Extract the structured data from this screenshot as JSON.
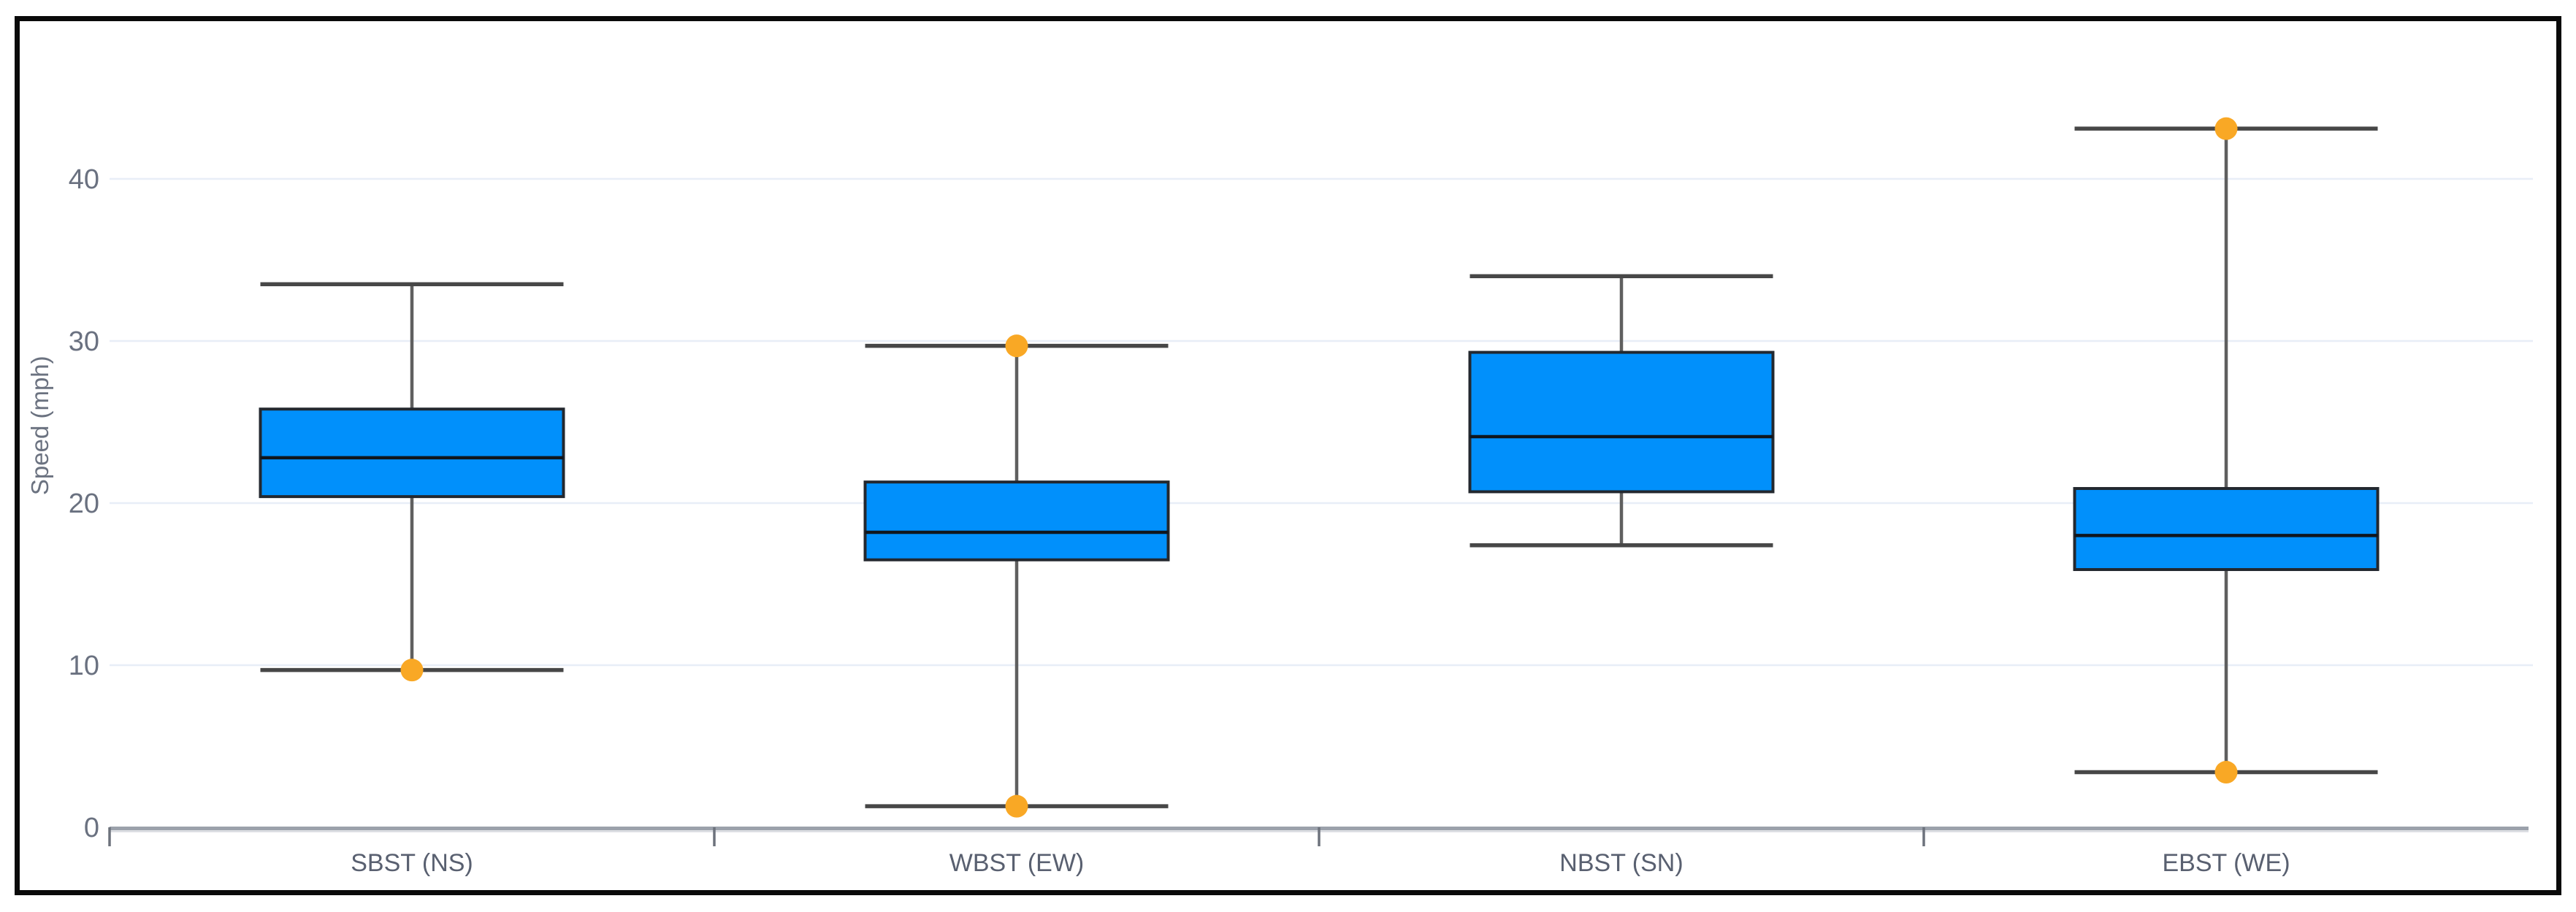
{
  "frame": {
    "border_color": "#0a0a0a",
    "background": "#ffffff"
  },
  "chart_data": {
    "type": "boxplot",
    "title": "",
    "xlabel": "",
    "ylabel": "Speed (mph)",
    "categories": [
      "SBST (NS)",
      "WBST (EW)",
      "NBST (SN)",
      "EBST (WE)"
    ],
    "series": [
      {
        "name": "SBST (NS)",
        "min": 9.7,
        "q1": 20.4,
        "median": 22.8,
        "q3": 25.8,
        "max": 33.5,
        "outlier_markers": [
          9.7
        ]
      },
      {
        "name": "WBST (EW)",
        "min": 1.3,
        "q1": 16.5,
        "median": 18.2,
        "q3": 21.3,
        "max": 29.7,
        "outlier_markers": [
          29.7,
          1.3
        ]
      },
      {
        "name": "NBST (SN)",
        "min": 17.4,
        "q1": 20.7,
        "median": 24.1,
        "q3": 29.3,
        "max": 34.0,
        "outlier_markers": []
      },
      {
        "name": "EBST (WE)",
        "min": 3.4,
        "q1": 15.9,
        "median": 18.0,
        "q3": 20.9,
        "max": 43.1,
        "outlier_markers": [
          43.1,
          3.4
        ]
      }
    ],
    "y_ticks": [
      0,
      10,
      20,
      30,
      40
    ],
    "ylim": [
      0,
      46
    ],
    "grid": true,
    "legend": false,
    "colors": {
      "box_fill": "#0190FB",
      "box_stroke": "#23282F",
      "median": "#10161D",
      "whisker": "#5F5F5F",
      "whisker_cap": "#474747",
      "outlier": "#F9A825",
      "gridline": "#E8EEF7",
      "axis_line": "#9BA1AB",
      "axis_shadow": "#D8DBE0",
      "tick_text": "#6A7180",
      "category_text": "#596070",
      "axis_title_text": "#6B7280"
    }
  }
}
